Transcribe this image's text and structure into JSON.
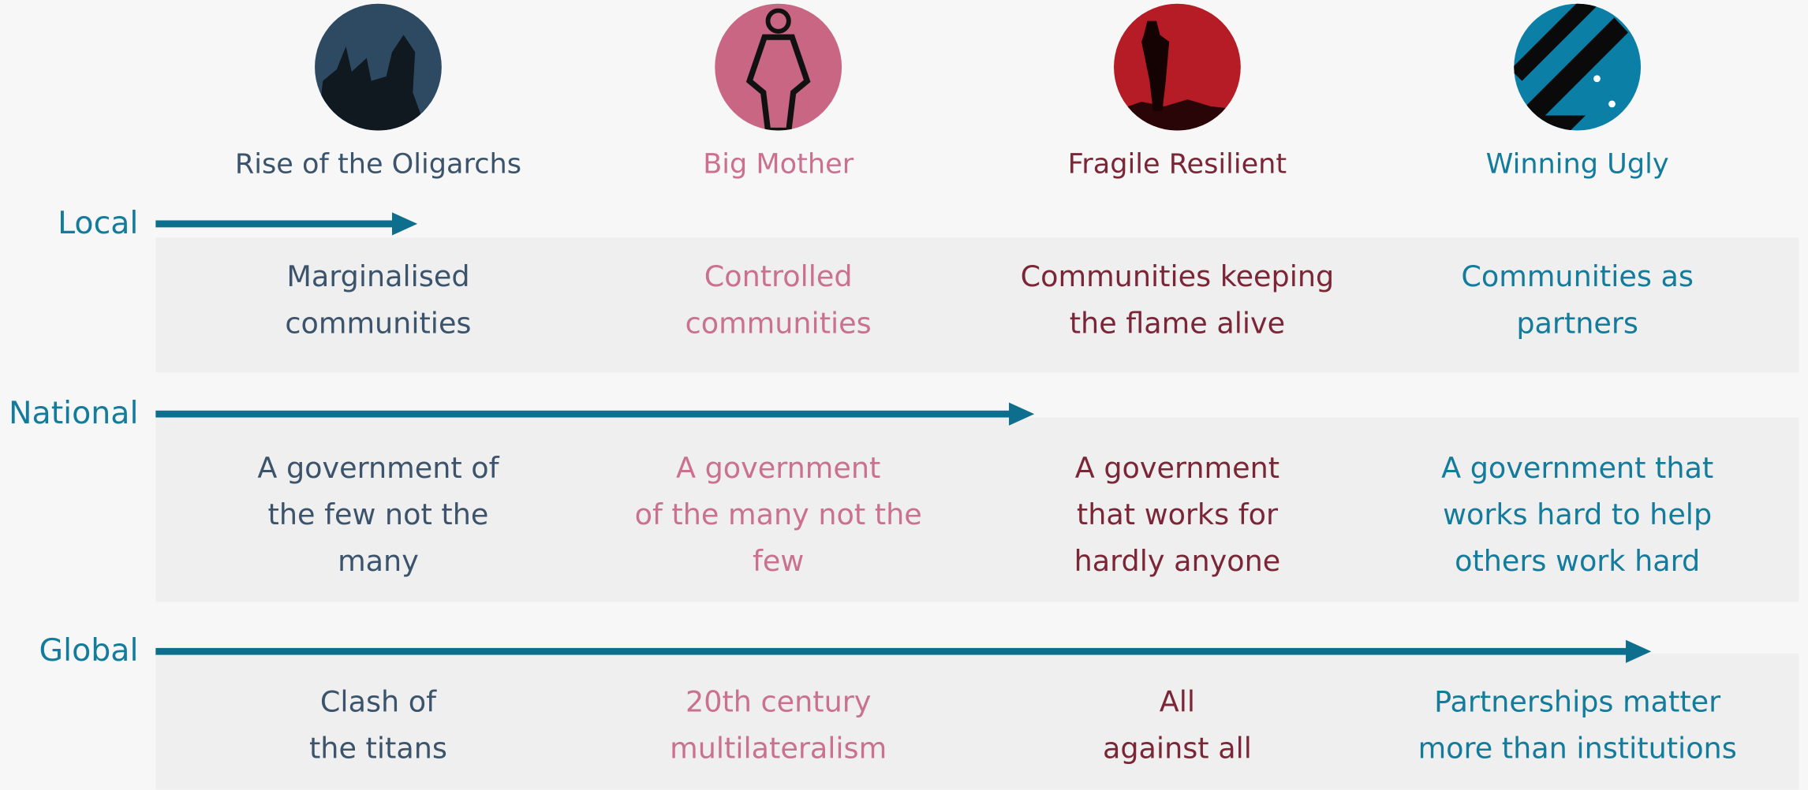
{
  "scenarios": [
    {
      "title": "Rise of the Oligarchs",
      "color": "#3b536b"
    },
    {
      "title": "Big Mother",
      "color": "#c9718f"
    },
    {
      "title": "Fragile Resilient",
      "color": "#7a2637"
    },
    {
      "title": "Winning Ugly",
      "color": "#137b9b"
    }
  ],
  "levels": [
    {
      "label": "Local",
      "cells": [
        {
          "lines": [
            "Marginalised",
            "communities"
          ]
        },
        {
          "lines": [
            "Controlled",
            "communities"
          ]
        },
        {
          "lines": [
            "Communities keeping",
            "the flame alive"
          ]
        },
        {
          "lines": [
            "Communities as",
            "partners"
          ]
        }
      ]
    },
    {
      "label": "National",
      "cells": [
        {
          "lines": [
            "A government of",
            "the few not the",
            "many"
          ]
        },
        {
          "lines": [
            "A government",
            "of the many not the",
            "few"
          ]
        },
        {
          "lines": [
            "A government",
            "that works for",
            "hardly anyone"
          ]
        },
        {
          "lines": [
            "A government that",
            "works hard to help",
            "others work hard"
          ]
        }
      ]
    },
    {
      "label": "Global",
      "cells": [
        {
          "lines": [
            "Clash of",
            "the titans"
          ]
        },
        {
          "lines": [
            "20th century",
            "multilateralism"
          ]
        },
        {
          "lines": [
            "All",
            "against all"
          ]
        },
        {
          "lines": [
            "Partnerships matter",
            "more than institutions"
          ]
        }
      ]
    }
  ]
}
